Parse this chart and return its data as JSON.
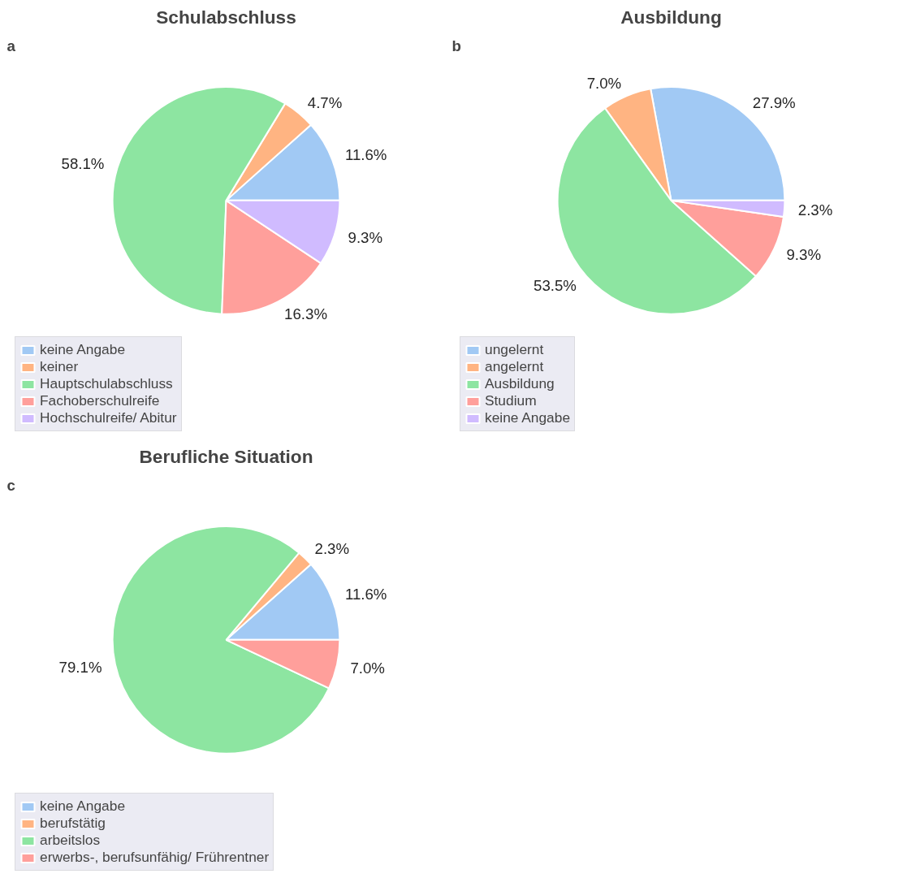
{
  "chart_data": [
    {
      "type": "pie",
      "title": "Schulabschluss",
      "annotations": [
        "a"
      ],
      "legend": "bottom left",
      "categories": [
        "keine Angabe",
        "keiner",
        "Hauptschulabschluss",
        "Fachoberschulreife",
        "Hochschulreife/ Abitur"
      ],
      "values": [
        11.6,
        4.7,
        58.1,
        16.3,
        9.3
      ],
      "value_labels": [
        "11.6%",
        "4.7%",
        "58.1%",
        "16.3%",
        "9.3%"
      ],
      "colors": [
        "#a1c9f4",
        "#ffb482",
        "#8de5a1",
        "#ff9f9b",
        "#d0bbff"
      ]
    },
    {
      "type": "pie",
      "title": "Ausbildung",
      "annotations": [
        "b"
      ],
      "legend": "bottom left",
      "categories": [
        "ungelernt",
        "angelernt",
        "Ausbildung",
        "Studium",
        "keine Angabe"
      ],
      "values": [
        27.9,
        7.0,
        53.5,
        9.3,
        2.3
      ],
      "value_labels": [
        "27.9%",
        "7.0%",
        "53.5%",
        "9.3%",
        "2.3%"
      ],
      "colors": [
        "#a1c9f4",
        "#ffb482",
        "#8de5a1",
        "#ff9f9b",
        "#d0bbff"
      ]
    },
    {
      "type": "pie",
      "title": "Berufliche Situation",
      "annotations": [
        "c"
      ],
      "legend": "bottom left",
      "categories": [
        "keine Angabe",
        "berufstätig",
        "arbeitslos",
        "erwerbs-, berufsunfähig/ Frührentner"
      ],
      "values": [
        11.6,
        2.3,
        79.1,
        7.0
      ],
      "value_labels": [
        "11.6%",
        "2.3%",
        "79.1%",
        "7.0%"
      ],
      "colors": [
        "#a1c9f4",
        "#ffb482",
        "#8de5a1",
        "#ff9f9b"
      ]
    }
  ]
}
